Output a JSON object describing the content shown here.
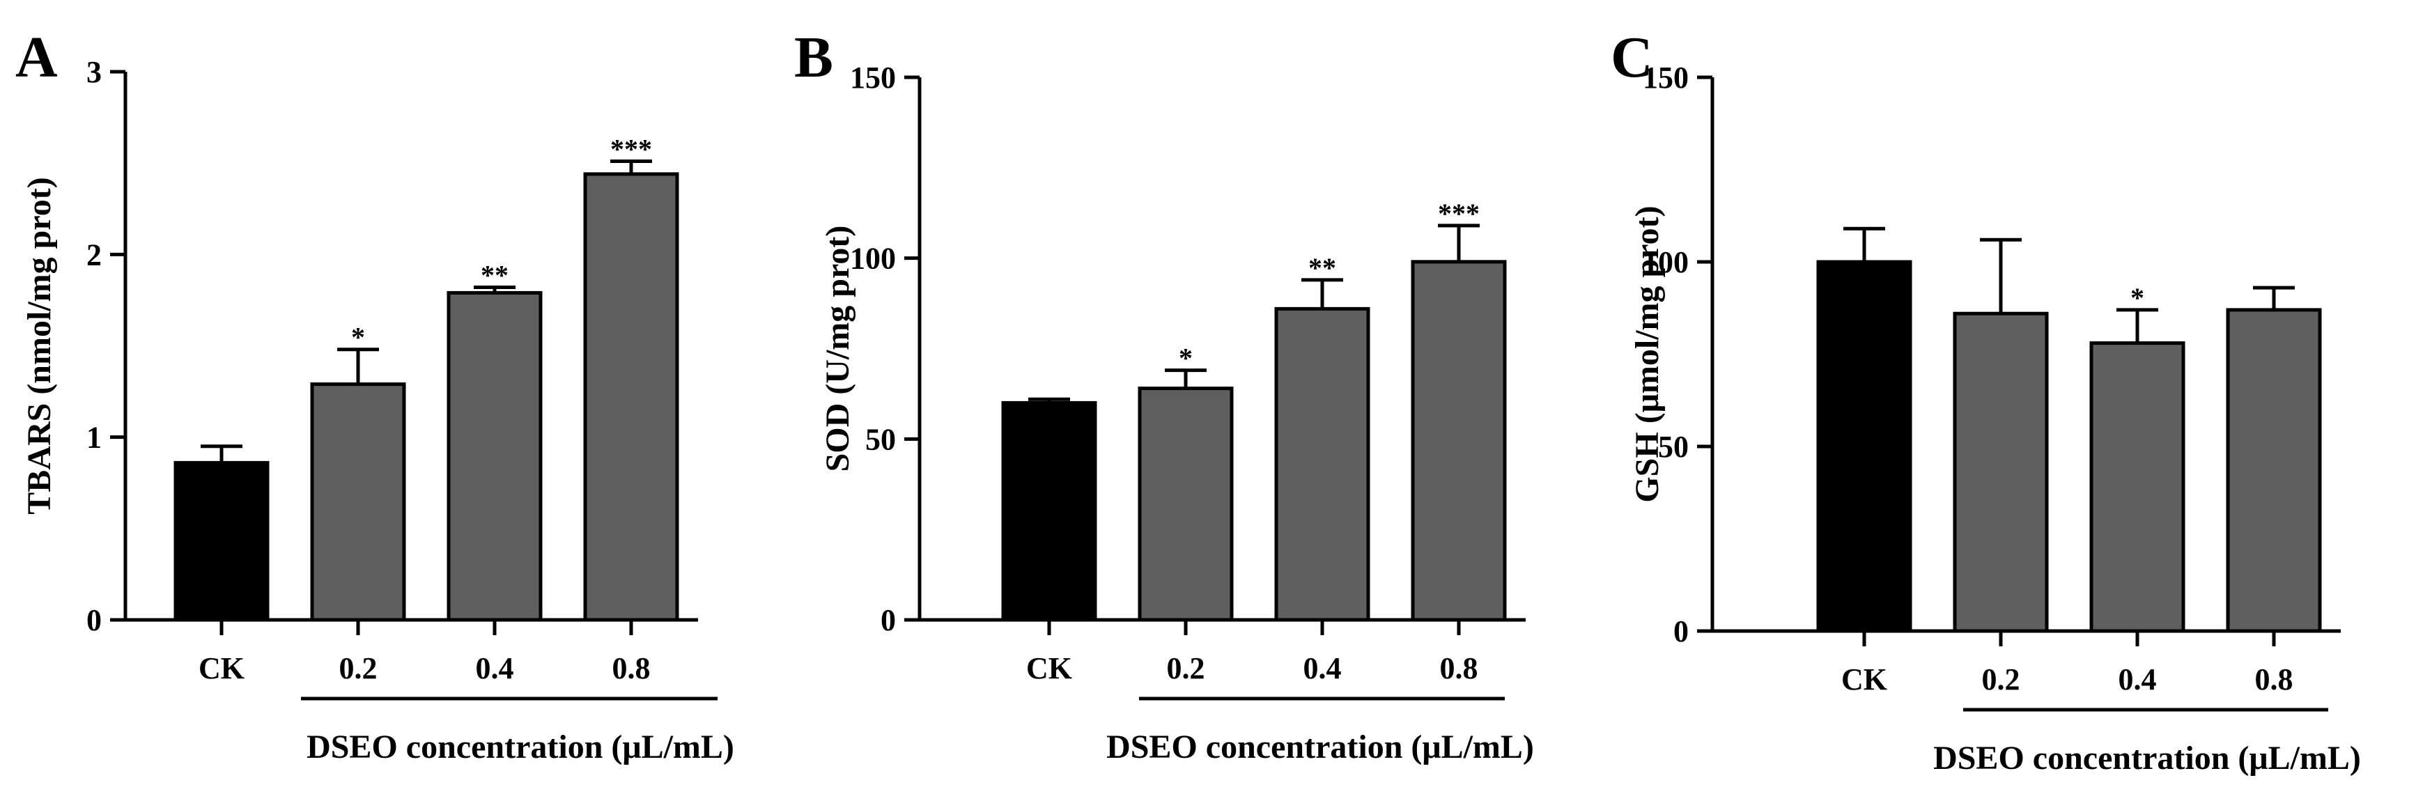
{
  "chart_data": [
    {
      "panel": "A",
      "type": "bar",
      "ylabel": "TBARS (nmol/mg prot)",
      "xlabel": "DSEO concentration (μL/mL)",
      "ylim": [
        0,
        3
      ],
      "yticks": [
        0,
        1,
        2,
        3
      ],
      "ytick_labels": [
        "0",
        "1",
        "2",
        "3"
      ],
      "categories": [
        "CK",
        "0.2",
        "0.4",
        "0.8"
      ],
      "values": [
        0.86,
        1.29,
        1.79,
        2.44
      ],
      "errors": [
        0.09,
        0.19,
        0.03,
        0.07
      ],
      "significance": [
        "",
        "*",
        "**",
        "***"
      ],
      "colors": [
        "#000000",
        "#5f5f5f",
        "#5f5f5f",
        "#5f5f5f"
      ]
    },
    {
      "panel": "B",
      "type": "bar",
      "ylabel": "SOD (U/mg prot)",
      "xlabel": "DSEO concentration (μL/mL)",
      "ylim": [
        0,
        150
      ],
      "yticks": [
        0,
        50,
        100,
        150
      ],
      "ytick_labels": [
        "0",
        "50",
        "100",
        "150"
      ],
      "categories": [
        "CK",
        "0.2",
        "0.4",
        "0.8"
      ],
      "values": [
        60,
        64,
        86,
        99
      ],
      "errors": [
        1,
        5,
        8,
        10
      ],
      "significance": [
        "",
        "*",
        "**",
        "***"
      ],
      "colors": [
        "#000000",
        "#5f5f5f",
        "#5f5f5f",
        "#5f5f5f"
      ]
    },
    {
      "panel": "C",
      "type": "bar",
      "ylabel": "GSH (μmol/mg prot)",
      "xlabel": "DSEO concentration (μL/mL)",
      "ylim": [
        0,
        150
      ],
      "yticks": [
        0,
        50,
        100,
        150
      ],
      "ytick_labels": [
        "0",
        "50",
        "100",
        "150"
      ],
      "categories": [
        "CK",
        "0.2",
        "0.4",
        "0.8"
      ],
      "values": [
        100,
        86,
        78,
        87
      ],
      "errors": [
        9,
        20,
        9,
        6
      ],
      "significance": [
        "",
        "",
        "*",
        ""
      ],
      "colors": [
        "#000000",
        "#5f5f5f",
        "#5f5f5f",
        "#5f5f5f"
      ]
    }
  ]
}
